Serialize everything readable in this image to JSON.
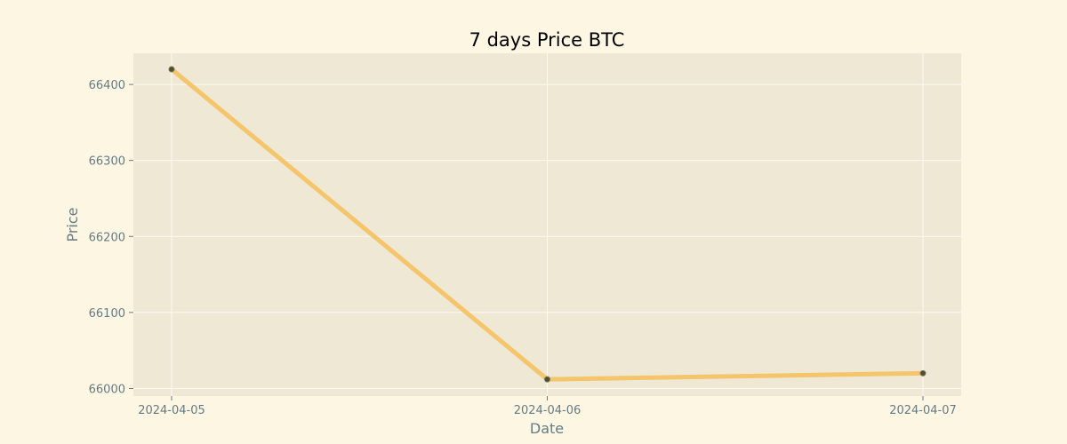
{
  "chart_data": {
    "type": "line",
    "title": "7 days Price BTC",
    "xlabel": "Date",
    "ylabel": "Price",
    "x": [
      "2024-04-05",
      "2024-04-06",
      "2024-04-07"
    ],
    "series": [
      {
        "values": [
          66420,
          66012,
          66020
        ]
      }
    ],
    "ylim": [
      65990,
      66441
    ],
    "yticks": [
      66000,
      66100,
      66200,
      66300,
      66400
    ],
    "grid": true,
    "legend": "none",
    "colors": {
      "background": "#fdf6e3",
      "plot_background": "#eee8d5",
      "line": "#f5c56b",
      "marker": "#4d4d33",
      "grid": "#fdfaf0",
      "text": "#657b83"
    }
  }
}
